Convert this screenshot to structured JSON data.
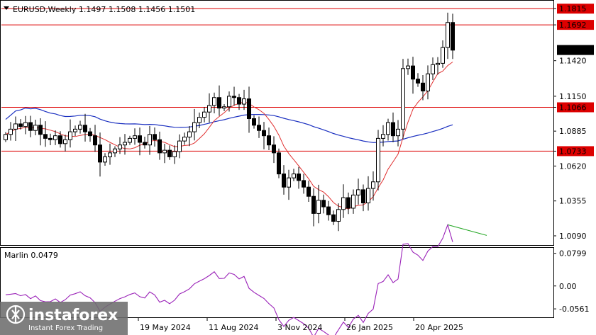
{
  "header": {
    "title": "EURUSD,Weekly  1.1497 1.1508 1.1456 1.1501"
  },
  "indicator": {
    "title": "Marlin 0.0479"
  },
  "watermark": {
    "brand": "instaforex",
    "tagline": "Instant Forex Trading"
  },
  "colors": {
    "bull": "#ffffff",
    "bear": "#000000",
    "ma_fast": "#e03030",
    "ma_slow": "#1a2fc0",
    "level": "#dd0000",
    "marlin": "#9a22b8",
    "trend": "#27a827"
  },
  "chart_data": [
    {
      "type": "candlestick",
      "symbol": "EURUSD",
      "timeframe": "Weekly",
      "ohlc_last": {
        "open": 1.1497,
        "high": 1.1508,
        "low": 1.1456,
        "close": 1.1501
      },
      "ylim": [
        1.002,
        1.187
      ],
      "y_ticks": [
        "1.1815",
        "1.1692",
        "1.1420",
        "1.1150",
        "1.1066",
        "1.0885",
        "1.0733",
        "1.0620",
        "1.0355",
        "1.0090"
      ],
      "y_tick_values": [
        1.1815,
        1.1692,
        1.142,
        1.115,
        1.1066,
        1.0885,
        1.0733,
        1.062,
        1.0355,
        1.009
      ],
      "level_labels": [
        "1.1815",
        "1.1692",
        "1.1066",
        "1.0733"
      ],
      "level_values": [
        1.1815,
        1.1692,
        1.1066,
        1.0733
      ],
      "current_price_label": "1.1501",
      "current_price": 1.1501,
      "x_labels": [
        "19 May 2024",
        "11 Aug 2024",
        "3 Nov 2024",
        "26 Jan 2025",
        "20 Apr 2025"
      ],
      "x_label_index": [
        27,
        39,
        51,
        63,
        75
      ],
      "closes": [
        1.086,
        1.09,
        1.094,
        1.092,
        1.095,
        1.089,
        1.093,
        1.086,
        1.083,
        1.082,
        1.085,
        1.079,
        1.082,
        1.088,
        1.09,
        1.093,
        1.088,
        1.085,
        1.078,
        1.065,
        1.069,
        1.072,
        1.075,
        1.078,
        1.08,
        1.083,
        1.085,
        1.08,
        1.078,
        1.086,
        1.082,
        1.072,
        1.074,
        1.069,
        1.073,
        1.081,
        1.084,
        1.088,
        1.095,
        1.099,
        1.103,
        1.108,
        1.114,
        1.106,
        1.107,
        1.115,
        1.114,
        1.109,
        1.113,
        1.098,
        1.093,
        1.089,
        1.085,
        1.078,
        1.072,
        1.056,
        1.046,
        1.053,
        1.056,
        1.051,
        1.046,
        1.039,
        1.026,
        1.036,
        1.031,
        1.025,
        1.02,
        1.029,
        1.038,
        1.03,
        1.04,
        1.044,
        1.034,
        1.045,
        1.05,
        1.083,
        1.086,
        1.095,
        1.085,
        1.09,
        1.136,
        1.138,
        1.128,
        1.125,
        1.119,
        1.132,
        1.139,
        1.14,
        1.152,
        1.171,
        1.15
      ]
    },
    {
      "type": "line",
      "name": "Marlin",
      "value": 0.0479,
      "ylim": [
        -0.075,
        0.0915
      ],
      "y_ticks": [
        "0.0799",
        "0.00",
        "-0.0561"
      ],
      "y_tick_values": [
        0.0799,
        0.0,
        -0.0561
      ]
    }
  ]
}
